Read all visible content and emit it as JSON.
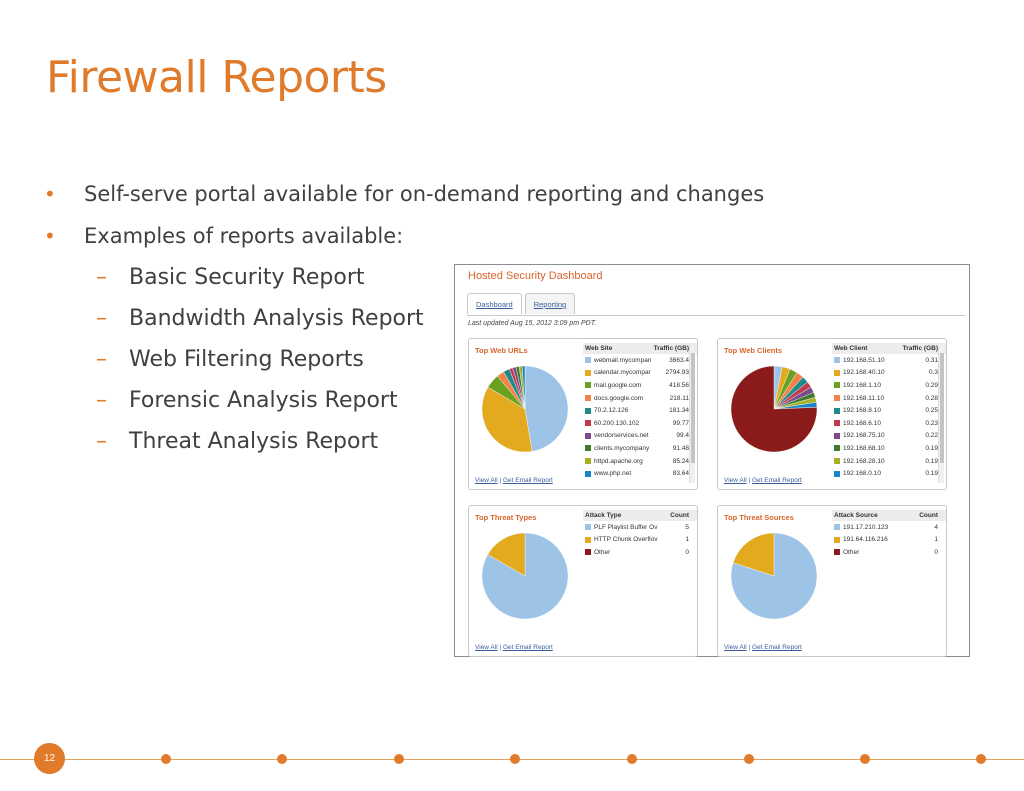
{
  "slide": {
    "title": "Firewall Reports",
    "bullets": [
      "Self-serve portal available for on-demand reporting and changes",
      "Examples of reports available:"
    ],
    "sub_bullets": [
      "Basic Security Report",
      "Bandwidth Analysis Report",
      "Web Filtering Reports",
      "Forensic Analysis Report",
      "Threat Analysis Report"
    ],
    "bullet_glyph": "•",
    "dash_glyph": "–",
    "page_number": "12"
  },
  "dashboard": {
    "title": "Hosted Security Dashboard",
    "tabs": [
      "Dashboard",
      "Reporting"
    ],
    "last_updated": "Last updated Aug 15, 2012 3:09 pm PDT.",
    "link_view_all": "View All",
    "link_separator": " | ",
    "link_email": "Get Email Report",
    "panels": {
      "web_urls": {
        "title": "Top Web URLs",
        "col1": "Web Site",
        "col2": "Traffic (GB)",
        "rows": [
          {
            "name": "webmail.mycompan",
            "value": "3663.4",
            "color": "#9dc3e6"
          },
          {
            "name": "calendar.mycompar",
            "value": "2794.93",
            "color": "#e3aa1f"
          },
          {
            "name": "mail.google.com",
            "value": "418.56",
            "color": "#6aa121"
          },
          {
            "name": "docs.google.com",
            "value": "218.11",
            "color": "#f0834a"
          },
          {
            "name": "70.2.12.126",
            "value": "181.34",
            "color": "#1f8a8a"
          },
          {
            "name": "60.200.130.102",
            "value": "99.77",
            "color": "#c0394d"
          },
          {
            "name": "vendorservices.net",
            "value": "99.4",
            "color": "#7a4a8a"
          },
          {
            "name": "clients.mycompany",
            "value": "91.48",
            "color": "#3e7a2e"
          },
          {
            "name": "httpd.apache.org",
            "value": "85.24",
            "color": "#a8b02a"
          },
          {
            "name": "www.php.net",
            "value": "83.64",
            "color": "#1a86c8"
          }
        ]
      },
      "web_clients": {
        "title": "Top Web Clients",
        "col1": "Web Client",
        "col2": "Traffic (GB)",
        "rows": [
          {
            "name": "192.168.51.10",
            "value": "0.31",
            "color": "#9dc3e6"
          },
          {
            "name": "192.168.40.10",
            "value": "0.3",
            "color": "#e3aa1f"
          },
          {
            "name": "192.168.1.10",
            "value": "0.29",
            "color": "#6aa121"
          },
          {
            "name": "192.168.11.10",
            "value": "0.28",
            "color": "#f0834a"
          },
          {
            "name": "192.168.8.10",
            "value": "0.25",
            "color": "#1f8a8a"
          },
          {
            "name": "192.168.6.10",
            "value": "0.23",
            "color": "#c0394d"
          },
          {
            "name": "192.168.75.10",
            "value": "0.22",
            "color": "#7a4a8a"
          },
          {
            "name": "192.168.68.10",
            "value": "0.19",
            "color": "#3e7a2e"
          },
          {
            "name": "192.168.28.10",
            "value": "0.19",
            "color": "#a8b02a"
          },
          {
            "name": "192.168.0.10",
            "value": "0.19",
            "color": "#1a86c8"
          }
        ]
      },
      "threat_types": {
        "title": "Top Threat Types",
        "col1": "Attack Type",
        "col2": "Count",
        "rows": [
          {
            "name": "PLF Playlist Buffer Ov",
            "value": "5",
            "color": "#9dc3e6"
          },
          {
            "name": "HTTP Chunk Overflov",
            "value": "1",
            "color": "#e3aa1f"
          },
          {
            "name": "Other",
            "value": "0",
            "color": "#8b1a1a"
          }
        ]
      },
      "threat_sources": {
        "title": "Top Threat Sources",
        "col1": "Attack Source",
        "col2": "Count",
        "rows": [
          {
            "name": "191.17.210.123",
            "value": "4",
            "color": "#9dc3e6"
          },
          {
            "name": "191.64.116.216",
            "value": "1",
            "color": "#e3aa1f"
          },
          {
            "name": "Other",
            "value": "0",
            "color": "#8b1a1a"
          }
        ]
      }
    }
  },
  "pie_slices": {
    "web_urls": [
      {
        "value": 3663.4,
        "color": "#9dc3e6"
      },
      {
        "value": 2794.93,
        "color": "#e3aa1f"
      },
      {
        "value": 418.56,
        "color": "#6aa121"
      },
      {
        "value": 218.11,
        "color": "#f0834a"
      },
      {
        "value": 181.34,
        "color": "#1f8a8a"
      },
      {
        "value": 99.77,
        "color": "#c0394d"
      },
      {
        "value": 99.4,
        "color": "#7a4a8a"
      },
      {
        "value": 91.48,
        "color": "#3e7a2e"
      },
      {
        "value": 85.24,
        "color": "#a8b02a"
      },
      {
        "value": 83.64,
        "color": "#1a86c8"
      }
    ],
    "web_clients": [
      {
        "value": 0.31,
        "color": "#9dc3e6"
      },
      {
        "value": 0.3,
        "color": "#e3aa1f"
      },
      {
        "value": 0.29,
        "color": "#6aa121"
      },
      {
        "value": 0.28,
        "color": "#f0834a"
      },
      {
        "value": 0.25,
        "color": "#1f8a8a"
      },
      {
        "value": 0.23,
        "color": "#c0394d"
      },
      {
        "value": 0.22,
        "color": "#7a4a8a"
      },
      {
        "value": 0.19,
        "color": "#3e7a2e"
      },
      {
        "value": 0.19,
        "color": "#a8b02a"
      },
      {
        "value": 0.19,
        "color": "#1a86c8"
      },
      {
        "value": 7.6,
        "color": "#8b1a1a"
      }
    ],
    "threat_types": [
      {
        "value": 5,
        "color": "#9dc3e6"
      },
      {
        "value": 1,
        "color": "#e3aa1f"
      }
    ],
    "threat_sources": [
      {
        "value": 4,
        "color": "#9dc3e6"
      },
      {
        "value": 1,
        "color": "#e3aa1f"
      }
    ]
  }
}
